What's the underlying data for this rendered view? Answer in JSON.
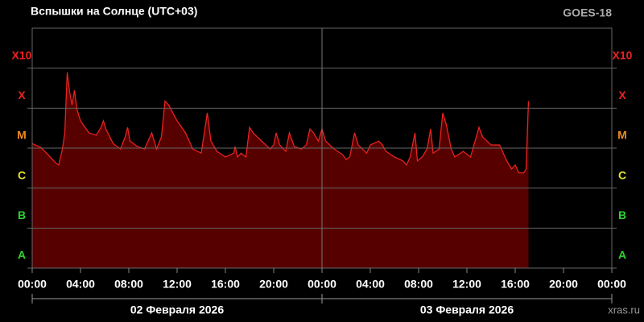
{
  "chart_data": {
    "type": "area",
    "title": "Вспышки на Солнце (UTC+03)",
    "satellite": "GOES-18",
    "source": "xras.ru",
    "log_scale": true,
    "line_color": "#e8221e",
    "fill_color": "#560000",
    "ylim": [
      1e-08,
      0.01
    ],
    "yticks": [
      {
        "value": 1e-08,
        "label": "A",
        "color": "#2fd42f"
      },
      {
        "value": 1e-07,
        "label": "B",
        "color": "#2fd42f"
      },
      {
        "value": 1e-06,
        "label": "C",
        "color": "#e0e030"
      },
      {
        "value": 1e-05,
        "label": "M",
        "color": "#f08a20"
      },
      {
        "value": 0.0001,
        "label": "X",
        "color": "#ee2222"
      },
      {
        "value": 0.001,
        "label": "X10",
        "color": "#ee2222"
      }
    ],
    "xlim": [
      0,
      48
    ],
    "xticks": [
      {
        "value": 0,
        "label": "00:00"
      },
      {
        "value": 4,
        "label": "04:00"
      },
      {
        "value": 8,
        "label": "08:00"
      },
      {
        "value": 12,
        "label": "12:00"
      },
      {
        "value": 16,
        "label": "16:00"
      },
      {
        "value": 20,
        "label": "20:00"
      },
      {
        "value": 24,
        "label": "00:00"
      },
      {
        "value": 28,
        "label": "04:00"
      },
      {
        "value": 32,
        "label": "08:00"
      },
      {
        "value": 36,
        "label": "12:00"
      },
      {
        "value": 40,
        "label": "16:00"
      },
      {
        "value": 44,
        "label": "20:00"
      },
      {
        "value": 48,
        "label": "00:00"
      }
    ],
    "days": [
      {
        "label": "02 Февраля 2026",
        "start": 0,
        "end": 24
      },
      {
        "label": "03 Февраля 2026",
        "start": 24,
        "end": 48
      }
    ],
    "x": [
      0,
      0.7,
      1.3,
      2,
      2.2,
      2.5,
      2.7,
      2.9,
      3.1,
      3.3,
      3.5,
      3.7,
      4,
      4.7,
      5.3,
      5.7,
      5.9,
      6.1,
      6.7,
      7.3,
      7.7,
      7.9,
      8.1,
      8.7,
      9.3,
      9.9,
      10.3,
      10.7,
      11,
      11.3,
      12,
      12.7,
      13.3,
      14,
      14.3,
      14.5,
      14.8,
      15.3,
      16,
      16.7,
      16.8,
      17,
      17.3,
      17.7,
      18,
      18.3,
      19,
      19.7,
      20,
      20.2,
      20.5,
      21,
      21.3,
      21.7,
      22.3,
      22.7,
      23,
      23.3,
      23.7,
      24,
      24.3,
      25,
      25.7,
      26,
      26.3,
      26.7,
      27,
      27.7,
      28,
      28.7,
      29,
      29.3,
      30,
      30.7,
      31,
      31.3,
      31.7,
      31.9,
      32.3,
      32.7,
      33,
      33.2,
      33.7,
      34,
      34.3,
      34.7,
      35,
      35.7,
      36.3,
      37,
      37.3,
      38,
      38.7,
      39.3,
      39.7,
      40,
      40.3,
      40.7,
      40.9,
      41.1
    ],
    "values": [
      1.3e-05,
      1.05e-05,
      6.9e-06,
      4.1e-06,
      3.8e-06,
      9.5e-06,
      2.4e-05,
      0.00078,
      0.00025,
      0.00012,
      0.00028,
      9.5e-05,
      4.8e-05,
      2.4e-05,
      2.1e-05,
      3.3e-05,
      4.8e-05,
      3e-05,
      1.3e-05,
      9.5e-06,
      1.9e-05,
      3.3e-05,
      1.5e-05,
      1.1e-05,
      9.5e-06,
      2.4e-05,
      9.5e-06,
      1.9e-05,
      0.00015,
      0.00012,
      4.8e-05,
      2.4e-05,
      9.5e-06,
      7.5e-06,
      3e-05,
      7.6e-05,
      1.5e-05,
      8.3e-06,
      6e-06,
      7.5e-06,
      1.1e-05,
      6e-06,
      7.5e-06,
      6e-06,
      3.3e-05,
      2.4e-05,
      1.5e-05,
      9.5e-06,
      1.2e-05,
      2.4e-05,
      1.2e-05,
      8.3e-06,
      2.4e-05,
      1.1e-05,
      9.5e-06,
      1.2e-05,
      3e-05,
      2.4e-05,
      1.5e-05,
      3e-05,
      1.5e-05,
      9.5e-06,
      6.9e-06,
      5.2e-06,
      6e-06,
      2.4e-05,
      1.2e-05,
      7.5e-06,
      1.2e-05,
      1.5e-05,
      1.2e-05,
      8.3e-06,
      6e-06,
      4.8e-06,
      3.8e-06,
      6e-06,
      2.4e-05,
      4.8e-06,
      6e-06,
      9.5e-06,
      3e-05,
      7.5e-06,
      9.5e-06,
      7.6e-05,
      3.8e-05,
      9.5e-06,
      6e-06,
      8.3e-06,
      6e-06,
      3.3e-05,
      1.9e-05,
      1.2e-05,
      1.2e-05,
      4.8e-06,
      3e-06,
      3.8e-06,
      2.4e-06,
      2.4e-06,
      3e-06,
      0.00015
    ]
  }
}
